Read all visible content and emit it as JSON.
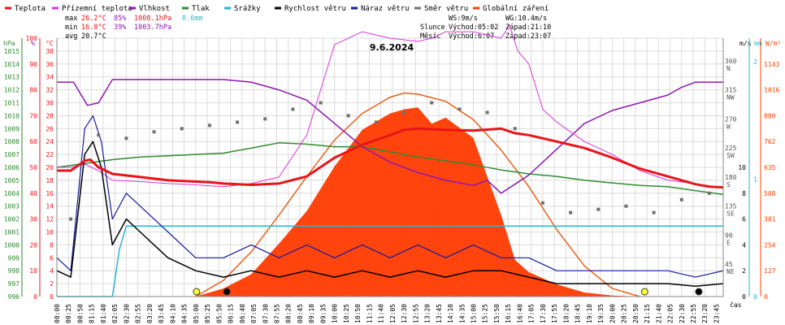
{
  "legend": [
    {
      "label": "Teplota",
      "color": "#e8141a"
    },
    {
      "label": "Přízemní teplota",
      "color": "#d838d8"
    },
    {
      "label": "Vlhkost",
      "color": "#8e16b0"
    },
    {
      "label": "Tlak",
      "color": "#2e8b2e"
    },
    {
      "label": "Srážky",
      "color": "#2ab4d4"
    },
    {
      "label": "Rychlost větru",
      "color": "#000000"
    },
    {
      "label": "Náraz větru",
      "color": "#1a1a9a"
    },
    {
      "label": "Směr větru",
      "color": "#707070"
    },
    {
      "label": "Globální záření",
      "color": "#ff4000"
    }
  ],
  "stats": {
    "max_label": "max",
    "max_temp": "26.2°C",
    "max_hum": "85%",
    "max_press": "1008.1hPa",
    "max_rain": "0.6mm",
    "min_label": "min",
    "min_temp": "16.8°C",
    "min_hum": "39%",
    "min_press": "1003.7hPa",
    "avg_label": "avg",
    "avg_temp": "20.7°C"
  },
  "wind_info": {
    "ws": "WS:9m/s",
    "wg": "WG:10.4m/s"
  },
  "sun": {
    "label": "Slunce",
    "rise": "Východ:05:02",
    "set": "Západ:21:10"
  },
  "moon": {
    "label": "Měsíc",
    "rise": "Východ:6:07",
    "set": "Západ:23:07"
  },
  "colors": {
    "humidity_axis": "#e8141a",
    "temp_axis": "#e8141a",
    "pressure_axis": "#2e8b2e",
    "wind_axis": "#000000",
    "rain_axis": "#2ab4d4",
    "radiation_axis": "#ff4000",
    "grid": "#dcdcdc"
  },
  "chart_data": {
    "type": "line",
    "title": "9.6.2024",
    "xlabel": "čas",
    "units": {
      "pressure": "hPa",
      "humidity": "%",
      "temperature": "°C",
      "wind": "m/s",
      "rain": "mm",
      "radiation": "W/m²"
    },
    "axes": {
      "pressure": {
        "ticks": [
          996,
          997,
          998,
          999,
          1000,
          1001,
          1002,
          1003,
          1004,
          1005,
          1006,
          1007,
          1008,
          1009,
          1010,
          1011,
          1012,
          1013,
          1014,
          1015
        ],
        "range": [
          996,
          1016
        ]
      },
      "humidity": {
        "ticks": [
          0,
          10,
          20,
          30,
          40,
          50,
          60,
          70,
          80,
          90,
          100
        ],
        "range": [
          0,
          100
        ]
      },
      "temperature": {
        "ticks": [
          0,
          2,
          4,
          6,
          8,
          10,
          12,
          14,
          16,
          18,
          20,
          22,
          24,
          26,
          28,
          30,
          32,
          34,
          36,
          38
        ],
        "range": [
          0,
          40
        ]
      },
      "direction": {
        "ticks": [
          "45 NE",
          "90 E",
          "135 SE",
          "180 S",
          "225 SW",
          "270 W",
          "315 NW",
          "360 N"
        ],
        "values": [
          45,
          90,
          135,
          180,
          225,
          270,
          315,
          360
        ],
        "range": [
          0,
          400
        ]
      },
      "wind_speed": {
        "ticks": [
          0,
          2,
          4,
          6,
          8,
          10
        ],
        "range": [
          0,
          20
        ]
      },
      "rain": {
        "ticks": [
          0,
          1,
          2
        ],
        "range": [
          0,
          2.2
        ]
      },
      "radiation": {
        "ticks": [
          0,
          127,
          254,
          381,
          508,
          635,
          762,
          889,
          1016,
          1143
        ],
        "range": [
          0,
          1270
        ]
      }
    },
    "time_labels": [
      "00:00",
      "00:25",
      "00:50",
      "01:15",
      "01:40",
      "02:05",
      "02:30",
      "02:55",
      "03:20",
      "03:45",
      "04:10",
      "04:35",
      "05:00",
      "05:25",
      "05:50",
      "06:15",
      "06:40",
      "07:05",
      "07:30",
      "07:55",
      "08:20",
      "08:45",
      "09:10",
      "09:35",
      "10:00",
      "10:25",
      "10:50",
      "11:15",
      "11:40",
      "12:05",
      "12:30",
      "12:55",
      "13:20",
      "13:45",
      "14:10",
      "14:35",
      "15:00",
      "15:25",
      "15:50",
      "16:15",
      "16:40",
      "17:05",
      "17:30",
      "17:55",
      "18:20",
      "18:45",
      "19:10",
      "19:35",
      "20:00",
      "20:25",
      "20:50",
      "21:15",
      "21:40",
      "22:05",
      "22:30",
      "22:55",
      "23:20",
      "23:45"
    ],
    "series": [
      {
        "name": "Teplota",
        "key": "temp",
        "x_hours": [
          0,
          0.5,
          1,
          1.2,
          1.5,
          2,
          3,
          4,
          5,
          5.5,
          6,
          7,
          8,
          9,
          10,
          11,
          12,
          12.5,
          13,
          14,
          15,
          16,
          16.5,
          17,
          18,
          19,
          20,
          21,
          22,
          22.5,
          23,
          23.5,
          24
        ],
        "values": [
          19.5,
          19.5,
          21,
          21.2,
          20,
          19,
          18.5,
          18,
          17.8,
          17.7,
          17.5,
          17.3,
          17.5,
          18.6,
          21.5,
          23.5,
          25,
          25.8,
          26,
          25.8,
          25.7,
          26,
          25.3,
          25,
          24,
          23,
          21.5,
          19.8,
          18.6,
          18,
          17.4,
          17,
          16.9
        ]
      },
      {
        "name": "Přízemní teplota",
        "key": "ground",
        "x_hours": [
          0,
          0.5,
          1,
          1.5,
          2,
          3,
          4,
          5,
          6,
          7,
          8,
          9,
          9.5,
          10,
          11,
          12,
          13,
          13.5,
          14,
          15,
          16,
          16.3,
          16.6,
          17,
          17.5,
          18,
          19,
          20,
          21,
          22,
          23,
          24
        ],
        "values": [
          20,
          20,
          20.5,
          19.5,
          18,
          17.8,
          17.5,
          17.3,
          17,
          17.5,
          18.5,
          25,
          32,
          39,
          41,
          40,
          39.5,
          40,
          41,
          41,
          40,
          42,
          38,
          36,
          29,
          27,
          24,
          22,
          19.5,
          18,
          17.5,
          16.8
        ]
      },
      {
        "name": "Vlhkost",
        "key": "hum",
        "x_hours": [
          0,
          0.6,
          1.1,
          1.5,
          2,
          3,
          4,
          5,
          6,
          7,
          8,
          9,
          10,
          11,
          12,
          13,
          14,
          15,
          15.5,
          16,
          17,
          18,
          19,
          20,
          21,
          22,
          22.5,
          23,
          24
        ],
        "values": [
          83,
          83,
          74,
          75,
          84,
          84,
          84,
          84,
          84,
          83,
          80,
          76,
          67,
          58,
          52,
          48,
          45,
          43,
          45,
          40,
          47,
          57,
          67,
          72,
          75,
          78,
          81,
          83,
          83
        ]
      },
      {
        "name": "Tlak",
        "key": "press",
        "x_hours": [
          0,
          1,
          2,
          3,
          4,
          5,
          6,
          7,
          8,
          9,
          10,
          11,
          12,
          13,
          14,
          15,
          16,
          17,
          18,
          19,
          20,
          21,
          22,
          23,
          24
        ],
        "values": [
          1006,
          1006.3,
          1006.6,
          1006.8,
          1006.9,
          1007,
          1007.1,
          1007.5,
          1007.9,
          1007.8,
          1007.6,
          1007.6,
          1007.2,
          1006.8,
          1006.5,
          1006.2,
          1005.8,
          1005.5,
          1005.3,
          1005,
          1004.8,
          1004.6,
          1004.5,
          1004.2,
          1003.9
        ]
      },
      {
        "name": "Srážky",
        "key": "rain",
        "x_hours": [
          0,
          2.0,
          2.25,
          2.5,
          24
        ],
        "values": [
          0,
          0,
          0.4,
          0.6,
          0.6
        ]
      },
      {
        "name": "Rychlost větru",
        "key": "wind",
        "x_hours": [
          0,
          0.5,
          1,
          1.3,
          1.6,
          2,
          2.5,
          3,
          3.5,
          4,
          5,
          6,
          7,
          8,
          9,
          10,
          11,
          12,
          13,
          14,
          15,
          16,
          17,
          18,
          19,
          20,
          21,
          22,
          23,
          24
        ],
        "values": [
          2,
          1.5,
          11,
          12,
          10,
          4,
          6,
          5,
          4,
          3,
          2,
          1.5,
          2,
          1.5,
          2,
          1.5,
          2,
          1.5,
          2,
          1.5,
          2,
          2,
          1.5,
          1,
          1,
          1,
          1,
          1,
          0.8,
          1
        ]
      },
      {
        "name": "Náraz větru",
        "key": "gust",
        "x_hours": [
          0,
          0.5,
          1,
          1.3,
          1.6,
          2,
          2.5,
          3,
          3.5,
          4,
          5,
          6,
          7,
          8,
          9,
          10,
          11,
          12,
          13,
          14,
          15,
          16,
          17,
          18,
          19,
          20,
          21,
          22,
          23,
          24
        ],
        "values": [
          3,
          2,
          13,
          14,
          12,
          6,
          8,
          7,
          6,
          5,
          3,
          3,
          4,
          3,
          4,
          3,
          4,
          3,
          4,
          3,
          4,
          3,
          3,
          2,
          2,
          2,
          2,
          2,
          1.5,
          2
        ]
      },
      {
        "name": "Globální záření",
        "key": "rad",
        "x_hours": [
          5,
          6,
          7,
          8,
          9,
          10,
          11,
          12,
          12.5,
          13,
          13.5,
          14,
          15,
          16,
          16.5,
          17,
          18,
          19,
          20,
          21
        ],
        "values": [
          0,
          40,
          110,
          260,
          420,
          640,
          820,
          900,
          920,
          930,
          850,
          880,
          780,
          400,
          180,
          120,
          60,
          20,
          5,
          0
        ]
      }
    ],
    "radiation_clear_sky": {
      "x_hours": [
        5,
        6,
        7,
        8,
        9,
        10,
        11,
        12,
        12.5,
        13,
        14,
        15,
        16,
        17,
        18,
        19,
        20,
        21
      ],
      "values": [
        0,
        80,
        220,
        400,
        590,
        770,
        900,
        980,
        1000,
        995,
        960,
        870,
        720,
        540,
        330,
        150,
        40,
        0
      ]
    },
    "wind_direction_deg": {
      "x_hours": [
        0.5,
        1.5,
        2.5,
        3.5,
        4.5,
        5.5,
        6.5,
        7.5,
        8.5,
        9.5,
        10.5,
        11.5,
        12.5,
        13.5,
        14.5,
        15.5,
        16.5,
        17.5,
        18.5,
        19.5,
        20.5,
        21.5,
        22.5,
        23.5
      ],
      "values": [
        120,
        250,
        245,
        255,
        260,
        265,
        270,
        275,
        290,
        300,
        280,
        270,
        285,
        300,
        290,
        285,
        260,
        145,
        130,
        135,
        140,
        130,
        150,
        160
      ]
    }
  }
}
